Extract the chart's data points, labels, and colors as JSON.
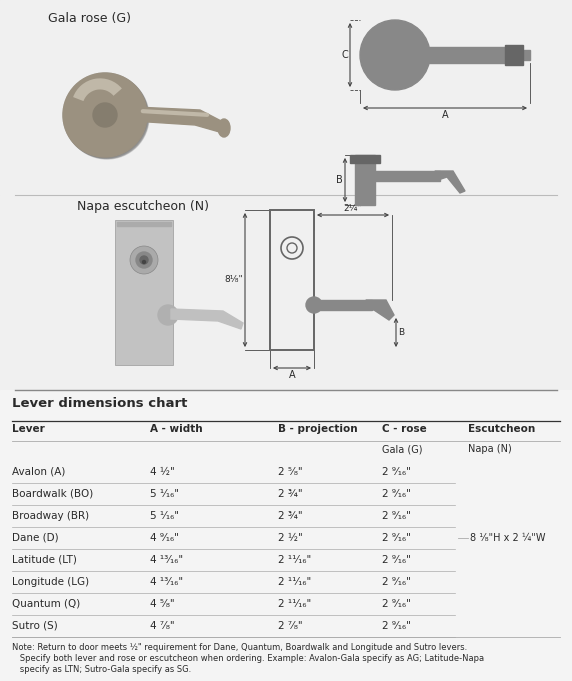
{
  "bg_color": "#e0e0e0",
  "white_bg": "#f0f0f0",
  "text_color": "#2a2a2a",
  "line_color": "#aaaaaa",
  "dark_line_color": "#444444",
  "shape_color": "#888888",
  "shape_light": "#aaaaaa",
  "shape_dark": "#666666",
  "title_gala": "Gala rose (G)",
  "title_napa": "Napa escutcheon (N)",
  "table_title": "Lever dimensions chart",
  "col_headers": [
    "Lever",
    "A - width",
    "B - projection",
    "C - rose",
    "Escutcheon"
  ],
  "sub_col3": "Gala (G)",
  "sub_col4": "Napa (N)",
  "rows": [
    [
      "Avalon (A)",
      "4 ½\"",
      "2 ⁵⁄₈\"",
      "2 ⁹⁄₁₆\""
    ],
    [
      "Boardwalk (BO)",
      "5 ¹⁄₁₆\"",
      "2 ¾\"",
      "2 ⁹⁄₁₆\""
    ],
    [
      "Broadway (BR)",
      "5 ¹⁄₁₆\"",
      "2 ¾\"",
      "2 ⁹⁄₁₆\""
    ],
    [
      "Dane (D)",
      "4 ⁹⁄₁₆\"",
      "2 ½\"",
      "2 ⁹⁄₁₆\""
    ],
    [
      "Latitude (LT)",
      "4 ¹³⁄₁₆\"",
      "2 ¹¹⁄₁₆\"",
      "2 ⁹⁄₁₆\""
    ],
    [
      "Longitude (LG)",
      "4 ¹³⁄₁₆\"",
      "2 ¹¹⁄₁₆\"",
      "2 ⁹⁄₁₆\""
    ],
    [
      "Quantum (Q)",
      "4 ⁵⁄₈\"",
      "2 ¹¹⁄₁₆\"",
      "2 ⁹⁄₁₆\""
    ],
    [
      "Sutro (S)",
      "4 ⁷⁄₈\"",
      "2 ⁷⁄₈\"",
      "2 ⁹⁄₁₆\""
    ]
  ],
  "escutcheon_note": "8 ¹⁄₈\"H x 2 ¼\"W",
  "note_lines": [
    "Note: Return to door meets ½\" requirement for Dane, Quantum, Boardwalk and Longitude and Sutro levers.",
    "   Specify both lever and rose or escutcheon when ordering. Example: Avalon-Gala specify as AG; Latitude-Napa",
    "   specify as LTN; Sutro-Gala specify as SG."
  ]
}
